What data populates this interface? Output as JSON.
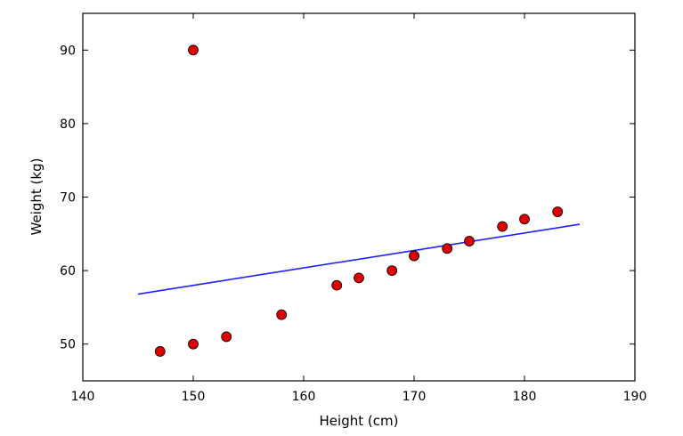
{
  "chart_data": {
    "type": "scatter",
    "title": "",
    "xlabel": "Height (cm)",
    "ylabel": "Weight (kg)",
    "xlim": [
      140,
      190
    ],
    "ylim": [
      45,
      95
    ],
    "x_ticks": [
      140,
      150,
      160,
      170,
      180,
      190
    ],
    "y_ticks": [
      50,
      60,
      70,
      80,
      90
    ],
    "grid": false,
    "points": {
      "x": [
        147,
        150,
        150,
        153,
        158,
        163,
        165,
        168,
        170,
        173,
        175,
        178,
        180,
        183
      ],
      "y": [
        49,
        50,
        90,
        51,
        54,
        58,
        59,
        60,
        62,
        63,
        64,
        66,
        67,
        68
      ],
      "color": "#dd0000",
      "edge_color": "#000000"
    },
    "fit_line": {
      "x": [
        145,
        185
      ],
      "y": [
        56.8,
        66.3
      ],
      "color": "#1f1fff"
    }
  }
}
